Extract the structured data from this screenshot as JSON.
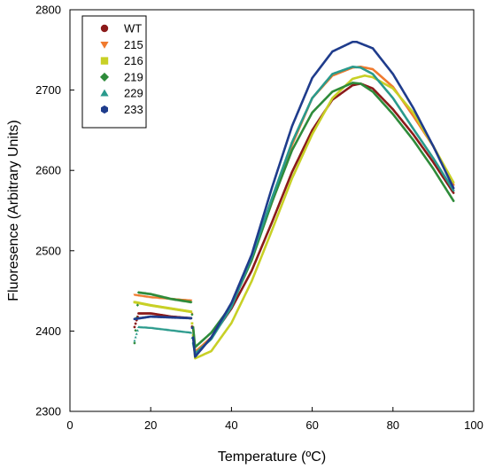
{
  "chart_data": {
    "type": "line",
    "title": "",
    "xlabel": "Temperature (ºC)",
    "ylabel": "Fluoresence (Arbitrary Units)",
    "xlim": [
      0,
      100
    ],
    "ylim": [
      2300,
      2800
    ],
    "x_ticks": [
      0,
      20,
      40,
      60,
      80,
      100
    ],
    "y_ticks": [
      2300,
      2400,
      2500,
      2600,
      2700,
      2800
    ],
    "grid": false,
    "legend_position": "top-left",
    "series": [
      {
        "name": "WT",
        "color": "#8B1A1A",
        "marker": "circle",
        "x": [
          16,
          17,
          20,
          25,
          30,
          30.5,
          31,
          35,
          40,
          45,
          50,
          55,
          60,
          65,
          70,
          72,
          75,
          80,
          85,
          90,
          95
        ],
        "y": [
          2405,
          2422,
          2422,
          2418,
          2416,
          2395,
          2372,
          2392,
          2428,
          2475,
          2535,
          2598,
          2650,
          2688,
          2706,
          2708,
          2702,
          2676,
          2645,
          2610,
          2572
        ]
      },
      {
        "name": "215",
        "color": "#F07A2E",
        "marker": "triangle-down",
        "x": [
          16,
          20,
          25,
          30,
          30.5,
          31,
          35,
          40,
          45,
          50,
          55,
          60,
          65,
          70,
          72,
          75,
          80,
          85,
          90,
          95
        ],
        "y": [
          2445,
          2442,
          2440,
          2438,
          2405,
          2374,
          2392,
          2432,
          2490,
          2560,
          2632,
          2690,
          2718,
          2728,
          2729,
          2726,
          2704,
          2668,
          2630,
          2582
        ]
      },
      {
        "name": "216",
        "color": "#C8D026",
        "marker": "square",
        "x": [
          16,
          20,
          25,
          30,
          30.5,
          31,
          35,
          40,
          45,
          50,
          55,
          60,
          65,
          70,
          73,
          75,
          80,
          85,
          90,
          95
        ],
        "y": [
          2436,
          2432,
          2428,
          2424,
          2395,
          2366,
          2375,
          2410,
          2462,
          2525,
          2590,
          2645,
          2690,
          2714,
          2718,
          2716,
          2702,
          2672,
          2630,
          2585
        ]
      },
      {
        "name": "219",
        "color": "#2E8B3A",
        "marker": "diamond",
        "x": [
          16,
          17,
          20,
          25,
          30,
          30.5,
          31,
          35,
          40,
          45,
          50,
          55,
          60,
          65,
          70,
          72,
          75,
          80,
          85,
          90,
          95
        ],
        "y": [
          2385,
          2448,
          2446,
          2440,
          2436,
          2405,
          2380,
          2398,
          2432,
          2488,
          2560,
          2625,
          2672,
          2698,
          2709,
          2708,
          2698,
          2670,
          2638,
          2602,
          2562
        ]
      },
      {
        "name": "229",
        "color": "#2A9A8C",
        "marker": "triangle-up",
        "x": [
          16,
          17,
          20,
          25,
          30,
          30.5,
          31,
          35,
          40,
          45,
          50,
          55,
          60,
          65,
          70,
          72,
          75,
          80,
          85,
          90,
          95
        ],
        "y": [
          2388,
          2405,
          2404,
          2401,
          2398,
          2385,
          2372,
          2390,
          2430,
          2492,
          2565,
          2635,
          2690,
          2720,
          2729,
          2728,
          2720,
          2690,
          2652,
          2615,
          2575
        ]
      },
      {
        "name": "233",
        "color": "#1F3C8C",
        "marker": "hexagon",
        "x": [
          16,
          20,
          25,
          30,
          30.5,
          31,
          35,
          40,
          45,
          50,
          55,
          60,
          65,
          70,
          71,
          75,
          80,
          85,
          90,
          95
        ],
        "y": [
          2415,
          2418,
          2417,
          2416,
          2392,
          2368,
          2392,
          2435,
          2495,
          2578,
          2655,
          2715,
          2748,
          2760,
          2760,
          2752,
          2720,
          2678,
          2630,
          2578
        ]
      }
    ]
  }
}
